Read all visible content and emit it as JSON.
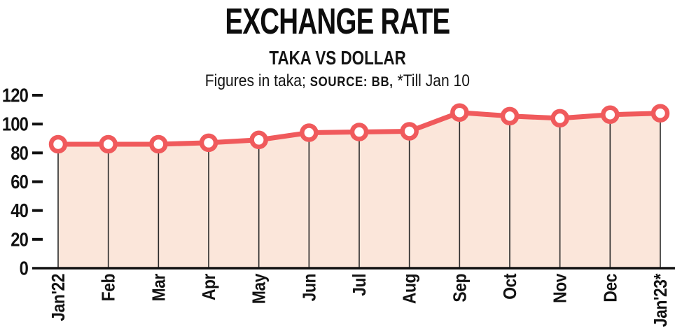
{
  "header": {
    "title": "EXCHANGE RATE",
    "subtitle": "TAKA VS DOLLAR",
    "note_prefix": "Figures in taka; ",
    "note_source": "SOURCE: BB,",
    "note_suffix": " *Till Jan 10"
  },
  "chart_data": {
    "type": "area",
    "title": "EXCHANGE RATE",
    "subtitle": "TAKA VS DOLLAR",
    "unit_note": "Figures in taka",
    "source": "BB",
    "footnote": "*Till Jan 10",
    "categories": [
      "Jan'22",
      "Feb",
      "Mar",
      "Apr",
      "May",
      "Jun",
      "Jul",
      "Aug",
      "Sep",
      "Oct",
      "Nov",
      "Dec",
      "Jan'23*"
    ],
    "values": [
      86,
      86,
      86,
      87,
      89,
      94,
      94.5,
      95,
      108,
      105.5,
      104,
      106.5,
      107.5
    ],
    "xlabel": "",
    "ylabel": "",
    "ylim": [
      0,
      120
    ],
    "yticks": [
      0,
      20,
      40,
      60,
      80,
      100,
      120
    ],
    "grid": false,
    "legend": "none",
    "marker": "circle-open",
    "colors": {
      "line": "#f05a5c",
      "marker_fill": "#ffffff",
      "area_fill": "#fbe6da",
      "axis": "#111111",
      "drop_line": "#2a2a2a",
      "text": "#121212"
    }
  }
}
